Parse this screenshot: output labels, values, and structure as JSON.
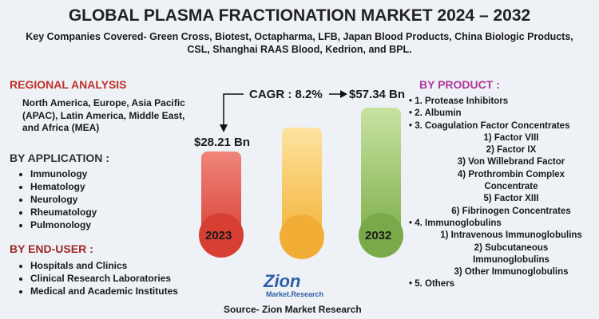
{
  "header": {
    "title": "GLOBAL PLASMA FRACTIONATION MARKET 2024 – 2032",
    "subtitle": "Key Companies Covered- Green Cross, Biotest, Octapharma, LFB, Japan Blood Products, China Biologic Products, CSL, Shanghai RAAS Blood, Kedrion, and BPL."
  },
  "regional": {
    "heading": "REGIONAL ANALYSIS",
    "text": "North America, Europe, Asia Pacific (APAC), Latin America, Middle East, and Africa (MEA)"
  },
  "application": {
    "heading": "BY APPLICATION :",
    "items": [
      "Immunology",
      "Hematology",
      "Neurology",
      "Rheumatology",
      "Pulmonology"
    ]
  },
  "end_user": {
    "heading": "BY END-USER :",
    "items": [
      "Hospitals and Clinics",
      "Clinical Research Laboratories",
      "Medical and Academic Institutes"
    ]
  },
  "market": {
    "cagr": "CAGR : 8.2%",
    "start_value": "$28.21 Bn",
    "end_value": "$57.34 Bn",
    "start_year": "2023",
    "end_year": "2032"
  },
  "product": {
    "heading": "BY PRODUCT :",
    "items": [
      {
        "text": "1. Protease Inhibitors"
      },
      {
        "text": "2. Albumin"
      },
      {
        "text": "3. Coagulation Factor Concentrates",
        "subitems": [
          "1) Factor VIII",
          "2) Factor IX",
          "3) Von Willebrand Factor",
          "4) Prothrombin Complex Concentrate",
          "5) Factor XIII",
          "6) Fibrinogen Concentrates"
        ]
      },
      {
        "text": "4. Immunoglobulins",
        "subitems": [
          "1) Intravenous Immunoglobulins",
          "2) Subcutaneous Immunoglobulins",
          "3) Other Immunoglobulins"
        ]
      },
      {
        "text": "5. Others"
      }
    ]
  },
  "logo": {
    "name": "Zion",
    "tagline": "Market.Research"
  },
  "footer": {
    "source": "Source- Zion Market Research"
  }
}
